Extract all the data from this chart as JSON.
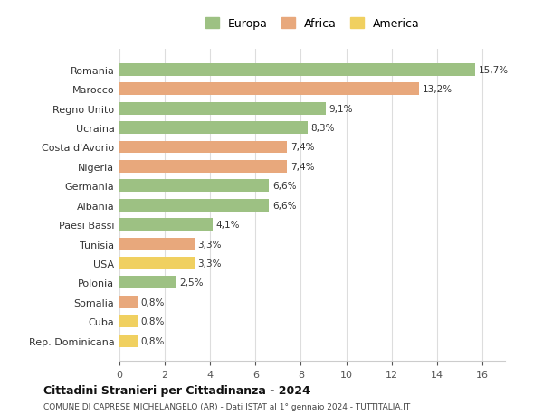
{
  "categories": [
    "Romania",
    "Marocco",
    "Regno Unito",
    "Ucraina",
    "Costa d'Avorio",
    "Nigeria",
    "Germania",
    "Albania",
    "Paesi Bassi",
    "Tunisia",
    "USA",
    "Polonia",
    "Somalia",
    "Cuba",
    "Rep. Dominicana"
  ],
  "values": [
    15.7,
    13.2,
    9.1,
    8.3,
    7.4,
    7.4,
    6.6,
    6.6,
    4.1,
    3.3,
    3.3,
    2.5,
    0.8,
    0.8,
    0.8
  ],
  "labels": [
    "15,7%",
    "13,2%",
    "9,1%",
    "8,3%",
    "7,4%",
    "7,4%",
    "6,6%",
    "6,6%",
    "4,1%",
    "3,3%",
    "3,3%",
    "2,5%",
    "0,8%",
    "0,8%",
    "0,8%"
  ],
  "continent": [
    "Europa",
    "Africa",
    "Europa",
    "Europa",
    "Africa",
    "Africa",
    "Europa",
    "Europa",
    "Europa",
    "Africa",
    "America",
    "Europa",
    "Africa",
    "America",
    "America"
  ],
  "color_europa": "#9dc183",
  "color_africa": "#e8a87c",
  "color_america": "#f0d060",
  "xlim": [
    0,
    17
  ],
  "xticks": [
    0,
    2,
    4,
    6,
    8,
    10,
    12,
    14,
    16
  ],
  "title": "Cittadini Stranieri per Cittadinanza - 2024",
  "subtitle": "COMUNE DI CAPRESE MICHELANGELO (AR) - Dati ISTAT al 1° gennaio 2024 - TUTTITALIA.IT",
  "legend_labels": [
    "Europa",
    "Africa",
    "America"
  ],
  "bg_color": "#ffffff",
  "grid_color": "#dddddd"
}
